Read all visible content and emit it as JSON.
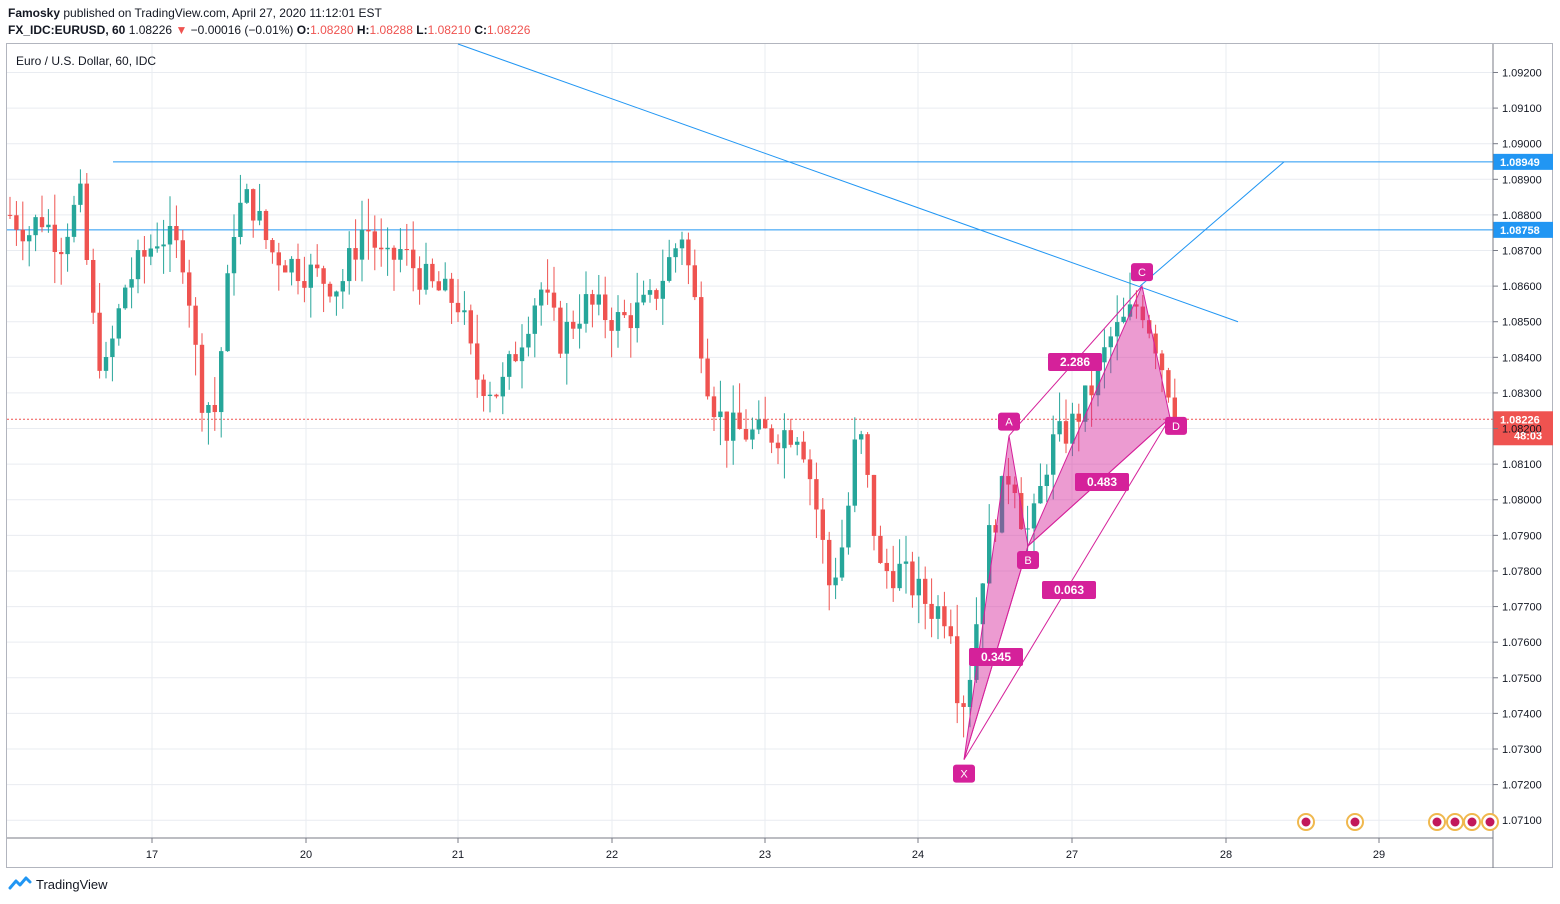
{
  "header": {
    "author": "Famosky",
    "published_text": "published on TradingView.com, April 27, 2020 11:12:01 EST",
    "symbol": "FX_IDC:EURUSD, 60",
    "last": "1.08226",
    "change": "−0.00016 (−0.01%)",
    "o_label": "O:",
    "o_value": "1.08280",
    "h_label": "H:",
    "h_value": "1.08288",
    "l_label": "L:",
    "l_value": "1.08210",
    "c_label": "C:",
    "c_value": "1.08226"
  },
  "footer": {
    "brand": "TradingView"
  },
  "chart_data": {
    "type": "candlestick",
    "title": "Euro / U.S. Dollar, 60, IDC",
    "ylim": [
      1.0705,
      1.0928
    ],
    "x_tick_labels": [
      "17",
      "20",
      "21",
      "22",
      "23",
      "24",
      "27",
      "28",
      "29"
    ],
    "y_tick_labels": [
      "1.09200",
      "1.09100",
      "1.09000",
      "1.08900",
      "1.08800",
      "1.08700",
      "1.08600",
      "1.08500",
      "1.08400",
      "1.08300",
      "1.08200",
      "1.08100",
      "1.08000",
      "1.07900",
      "1.07800",
      "1.07700",
      "1.07600",
      "1.07500",
      "1.07400",
      "1.07300",
      "1.07200",
      "1.07100"
    ],
    "current_price": {
      "label": "1.08226",
      "value": 1.08226,
      "countdown": "48:03"
    },
    "horizontal_levels": [
      {
        "label": "1.08949",
        "value": 1.08949
      },
      {
        "label": "1.08758",
        "value": 1.08758
      }
    ],
    "harmonic_pattern": {
      "points": [
        {
          "label": "X",
          "price": 1.0727
        },
        {
          "label": "A",
          "price": 1.0818
        },
        {
          "label": "B",
          "price": 1.0787
        },
        {
          "label": "C",
          "price": 1.086
        },
        {
          "label": "D",
          "price": 1.0823
        }
      ],
      "ratios": [
        "0.345",
        "2.286",
        "0.483",
        "0.063"
      ]
    },
    "grid": true,
    "colors": {
      "up": "#26a69a",
      "down": "#ef5350",
      "line": "#2196f3",
      "pattern": "#d5219a",
      "level_label": "#2196f3"
    }
  }
}
